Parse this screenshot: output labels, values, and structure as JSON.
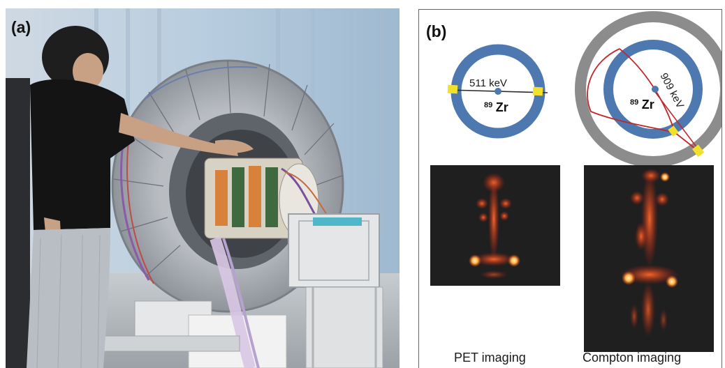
{
  "figure": {
    "panel_a_label": "(a)",
    "panel_b_label": "(b)"
  },
  "panel_b": {
    "pet_diagram": {
      "energy_label": "511 keV",
      "isotope_superscript": "89",
      "isotope_symbol": "Zr",
      "ring_color": "#4d78b0",
      "hit_color": "#f2e12c",
      "line_color": "#2b2b2b"
    },
    "compton_diagram": {
      "energy_label": "909 keV",
      "isotope_superscript": "89",
      "isotope_symbol": "Zr",
      "outer_ring_color": "#8c8c8c",
      "inner_ring_color": "#4d78b0",
      "cone_color": "#c0282e",
      "hit_color": "#f2e12c"
    },
    "captions": {
      "pet": "PET imaging",
      "compton": "Compton imaging"
    },
    "image_colors": {
      "background": "#1f1f1f",
      "hot": "#ff5a1e",
      "hottest": "#ffe08a"
    }
  }
}
